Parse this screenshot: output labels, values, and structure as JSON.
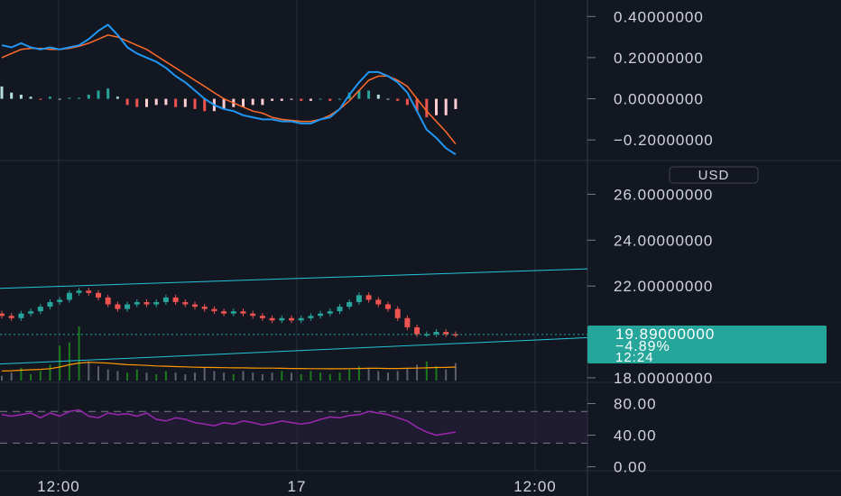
{
  "currency_button": {
    "label": "USD"
  },
  "price_badge": {
    "price": "19.89000000",
    "change": "−4.89%",
    "countdown": "12:24"
  },
  "colors": {
    "background": "#131722",
    "up": "#26a69a",
    "down": "#ef5350",
    "macd_line": "#2196f3",
    "signal_line": "#ff6d2a",
    "channel": "#26c6da",
    "volume_ma": "#ff9800",
    "rsi_line": "#9c27b0",
    "rsi_band": "#2a1f3d",
    "badge": "#26a69a"
  },
  "chart_data": [
    {
      "type": "line",
      "name": "macd_pane",
      "y_ticks": [
        "0.40000000",
        "0.20000000",
        "0.00000000",
        "−0.20000000"
      ],
      "ylim": [
        -0.3,
        0.48
      ],
      "macd": [
        0.26,
        0.25,
        0.27,
        0.25,
        0.24,
        0.25,
        0.24,
        0.25,
        0.26,
        0.29,
        0.33,
        0.36,
        0.31,
        0.25,
        0.22,
        0.2,
        0.18,
        0.15,
        0.11,
        0.08,
        0.04,
        0.0,
        -0.03,
        -0.05,
        -0.06,
        -0.08,
        -0.09,
        -0.1,
        -0.1,
        -0.11,
        -0.11,
        -0.12,
        -0.12,
        -0.1,
        -0.09,
        -0.05,
        0.02,
        0.08,
        0.13,
        0.13,
        0.11,
        0.08,
        0.03,
        -0.06,
        -0.15,
        -0.19,
        -0.24,
        -0.27
      ],
      "signal": [
        0.2,
        0.22,
        0.24,
        0.245,
        0.245,
        0.24,
        0.24,
        0.245,
        0.255,
        0.27,
        0.29,
        0.31,
        0.3,
        0.28,
        0.26,
        0.24,
        0.21,
        0.18,
        0.15,
        0.12,
        0.09,
        0.06,
        0.03,
        0.0,
        -0.02,
        -0.04,
        -0.06,
        -0.07,
        -0.09,
        -0.1,
        -0.105,
        -0.11,
        -0.11,
        -0.1,
        -0.08,
        -0.05,
        -0.01,
        0.04,
        0.09,
        0.11,
        0.11,
        0.09,
        0.06,
        0.0,
        -0.06,
        -0.11,
        -0.16,
        -0.22
      ],
      "histogram": [
        0.06,
        0.03,
        0.02,
        0.01,
        -0.005,
        0.01,
        0.0,
        0.005,
        0.005,
        0.02,
        0.04,
        0.05,
        0.01,
        -0.03,
        -0.04,
        -0.04,
        -0.03,
        -0.03,
        -0.04,
        -0.04,
        -0.05,
        -0.06,
        -0.06,
        -0.05,
        -0.04,
        -0.04,
        -0.03,
        -0.03,
        -0.01,
        -0.01,
        -0.005,
        -0.01,
        -0.01,
        0.0,
        -0.01,
        0.0,
        0.03,
        0.04,
        0.04,
        0.02,
        0.0,
        -0.01,
        -0.03,
        -0.06,
        -0.09,
        -0.08,
        -0.08,
        -0.05
      ]
    },
    {
      "type": "candlestick",
      "name": "price_pane",
      "y_ticks": [
        "26.00000000",
        "24.00000000",
        "22.00000000",
        "18.00000000"
      ],
      "ylim": [
        17.8,
        27.0
      ],
      "current_price": 19.89,
      "open": [
        20.8,
        20.7,
        20.6,
        20.8,
        20.9,
        21.1,
        21.3,
        21.4,
        21.7,
        21.8,
        21.7,
        21.5,
        21.2,
        21.0,
        21.2,
        21.3,
        21.2,
        21.3,
        21.5,
        21.3,
        21.2,
        21.1,
        21.0,
        20.9,
        20.8,
        20.9,
        20.8,
        20.7,
        20.6,
        20.5,
        20.6,
        20.5,
        20.6,
        20.7,
        20.8,
        20.9,
        21.1,
        21.3,
        21.6,
        21.4,
        21.2,
        21.0,
        20.6,
        20.2,
        19.9,
        19.9,
        20.0,
        19.9
      ],
      "close": [
        20.7,
        20.6,
        20.8,
        20.9,
        21.1,
        21.3,
        21.4,
        21.7,
        21.8,
        21.7,
        21.5,
        21.2,
        21.0,
        21.2,
        21.3,
        21.2,
        21.3,
        21.5,
        21.3,
        21.2,
        21.1,
        21.0,
        20.9,
        20.8,
        20.9,
        20.8,
        20.7,
        20.6,
        20.5,
        20.6,
        20.5,
        20.6,
        20.7,
        20.8,
        20.9,
        21.1,
        21.3,
        21.6,
        21.4,
        21.2,
        21.0,
        20.6,
        20.2,
        19.9,
        19.9,
        20.0,
        19.9,
        19.89
      ],
      "channel_upper": {
        "x0": -2,
        "y0": 21.9,
        "x1": 58,
        "y1": 22.75
      },
      "channel_lower": {
        "x0": -2,
        "y0": 18.6,
        "x1": 58,
        "y1": 19.75
      },
      "volume": [
        0.3,
        0.5,
        0.8,
        0.4,
        0.6,
        1.0,
        2.2,
        2.4,
        3.4,
        1.2,
        0.9,
        0.7,
        0.6,
        0.5,
        0.7,
        0.5,
        0.4,
        0.6,
        0.5,
        0.4,
        0.5,
        0.8,
        0.6,
        0.5,
        0.4,
        0.6,
        0.5,
        0.4,
        0.5,
        0.6,
        0.5,
        0.4,
        0.6,
        0.5,
        0.4,
        0.5,
        0.7,
        0.9,
        0.8,
        0.6,
        0.5,
        0.6,
        0.8,
        1.0,
        1.2,
        0.9,
        0.7,
        1.1
      ],
      "volume_ma": [
        0.6,
        0.62,
        0.65,
        0.68,
        0.7,
        0.75,
        0.85,
        1.0,
        1.1,
        1.15,
        1.12,
        1.1,
        1.05,
        1.0,
        0.98,
        0.95,
        0.92,
        0.9,
        0.88,
        0.86,
        0.84,
        0.83,
        0.82,
        0.81,
        0.8,
        0.8,
        0.79,
        0.78,
        0.78,
        0.77,
        0.76,
        0.76,
        0.75,
        0.75,
        0.74,
        0.74,
        0.75,
        0.76,
        0.77,
        0.77,
        0.76,
        0.76,
        0.77,
        0.78,
        0.8,
        0.82,
        0.83,
        0.85
      ]
    },
    {
      "type": "line",
      "name": "rsi_pane",
      "y_ticks": [
        "80.00",
        "40.00",
        "0.00"
      ],
      "ylim": [
        -5,
        100
      ],
      "band": [
        30,
        70
      ],
      "rsi": [
        66,
        64,
        66,
        68,
        62,
        68,
        64,
        70,
        72,
        64,
        62,
        68,
        66,
        67,
        64,
        68,
        60,
        58,
        62,
        60,
        56,
        54,
        52,
        56,
        54,
        58,
        56,
        53,
        55,
        58,
        56,
        54,
        56,
        60,
        63,
        62,
        65,
        66,
        70,
        68,
        66,
        62,
        58,
        50,
        44,
        40,
        42,
        44
      ]
    }
  ],
  "x_axis": {
    "labels": [
      "12:00",
      "17",
      "12:00"
    ]
  }
}
